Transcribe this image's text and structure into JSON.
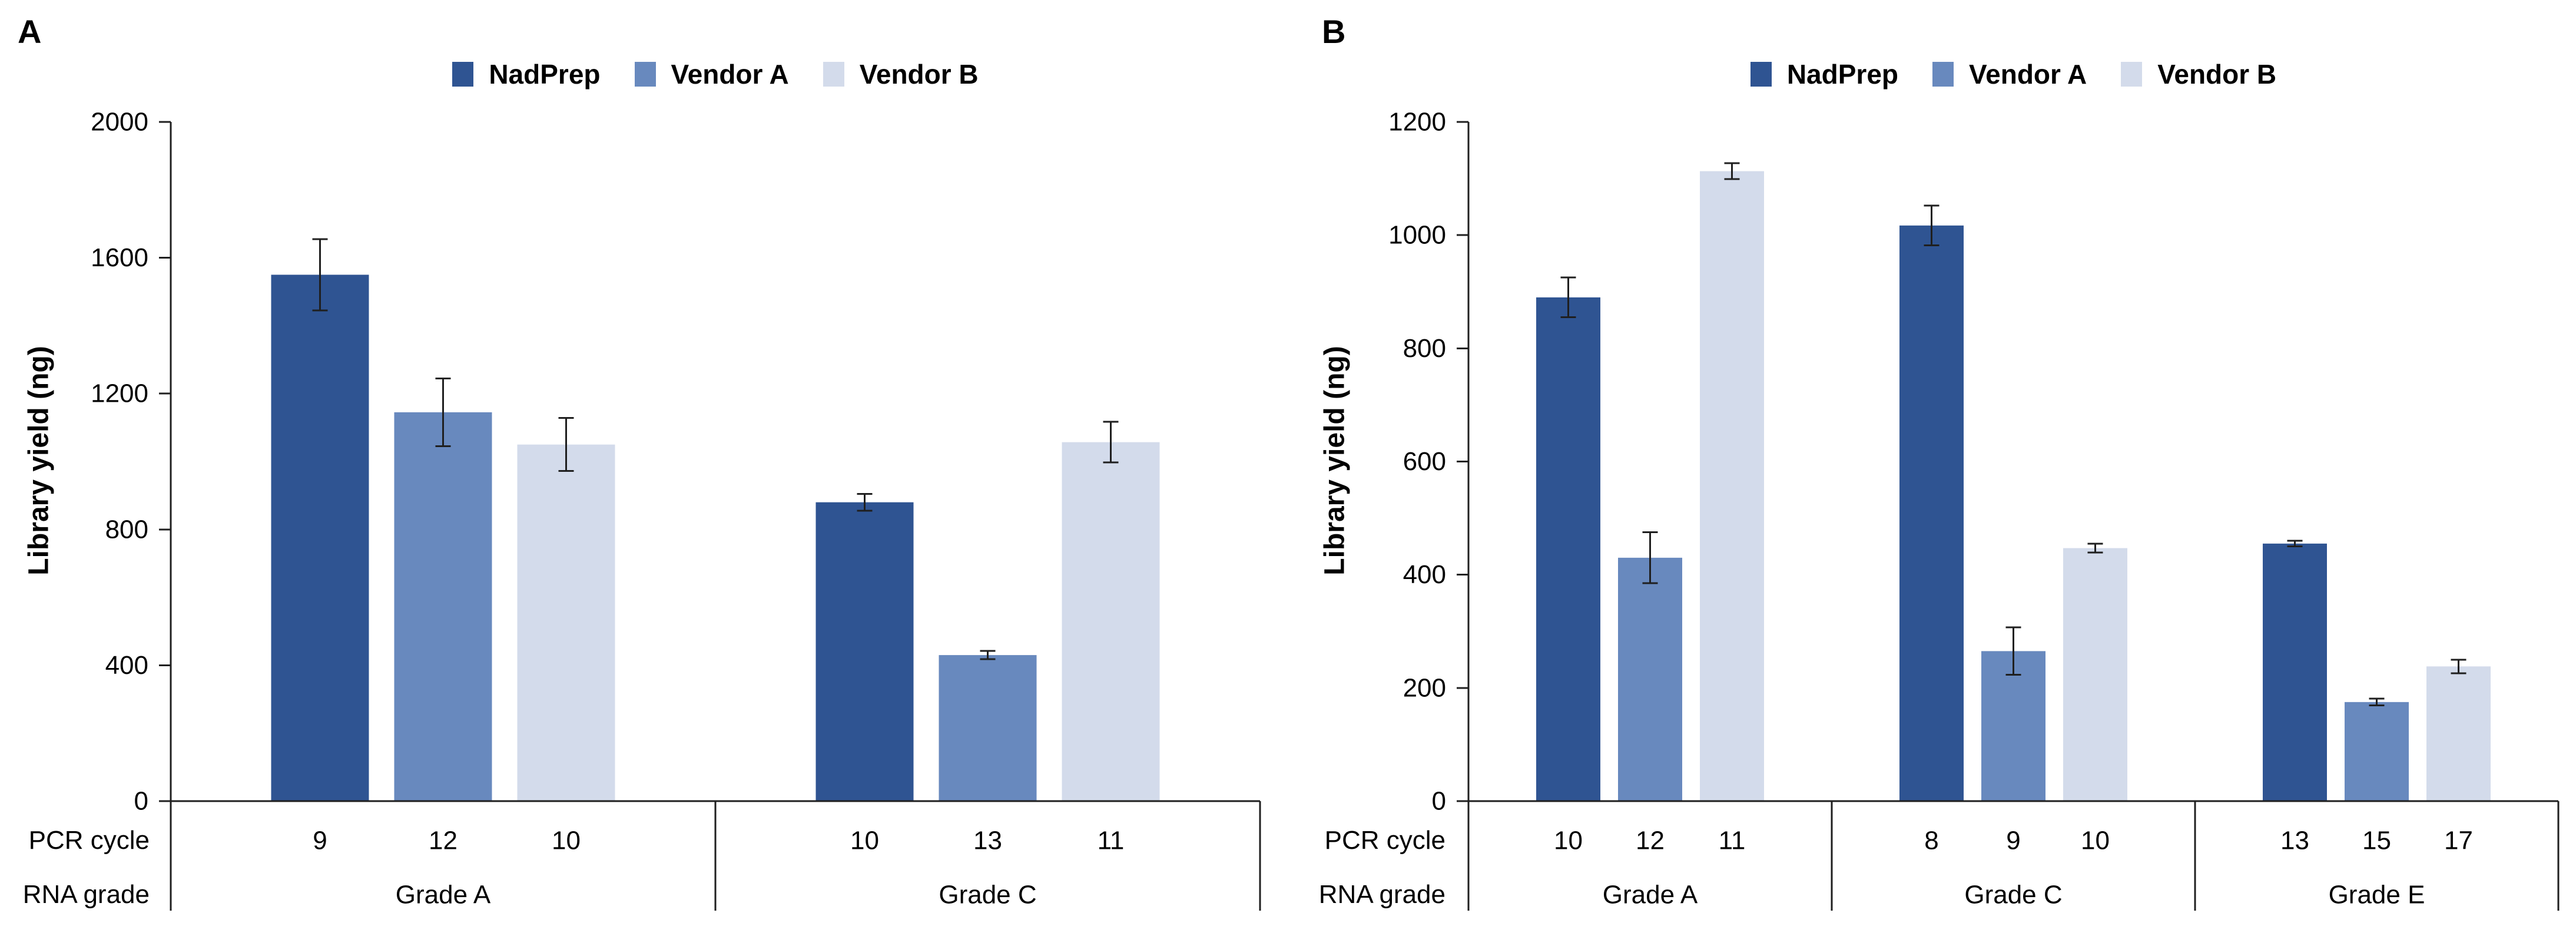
{
  "colors": {
    "series": [
      "#2F5492",
      "#6889BE",
      "#D3DBEB"
    ],
    "axis": "#1F1F1F",
    "text": "#000000"
  },
  "row_labels": {
    "pcr": "PCR cycle",
    "rna": "RNA grade"
  },
  "chart_data": [
    {
      "type": "bar",
      "panel_label": "A",
      "title": "",
      "ylabel": "Library yield (ng)",
      "xlabel": "",
      "ylim": [
        0,
        2000
      ],
      "yticks": [
        0,
        400,
        800,
        1200,
        1600,
        2000
      ],
      "grid": false,
      "legend_position": "top-center",
      "legend": [
        "NadPrep",
        "Vendor A",
        "Vendor B"
      ],
      "groups": [
        {
          "rna_grade": "Grade A",
          "pcr_cycles": [
            "9",
            "12",
            "10"
          ],
          "values": [
            1550,
            1145,
            1050
          ],
          "errors": [
            105,
            100,
            78
          ]
        },
        {
          "rna_grade": "Grade C",
          "pcr_cycles": [
            "10",
            "13",
            "11"
          ],
          "values": [
            880,
            430,
            1057
          ],
          "errors": [
            25,
            12,
            60
          ]
        }
      ]
    },
    {
      "type": "bar",
      "panel_label": "B",
      "title": "",
      "ylabel": "Library yield (ng)",
      "xlabel": "",
      "ylim": [
        0,
        1200
      ],
      "yticks": [
        0,
        200,
        400,
        600,
        800,
        1000,
        1200
      ],
      "grid": false,
      "legend_position": "top-center",
      "legend": [
        "NadPrep",
        "Vendor A",
        "Vendor B"
      ],
      "groups": [
        {
          "rna_grade": "Grade A",
          "pcr_cycles": [
            "10",
            "12",
            "11"
          ],
          "values": [
            890,
            430,
            1113
          ],
          "errors": [
            35,
            45,
            14
          ]
        },
        {
          "rna_grade": "Grade C",
          "pcr_cycles": [
            "8",
            "9",
            "10"
          ],
          "values": [
            1017,
            265,
            447
          ],
          "errors": [
            35,
            42,
            8
          ]
        },
        {
          "rna_grade": "Grade E",
          "pcr_cycles": [
            "13",
            "15",
            "17"
          ],
          "values": [
            455,
            175,
            238
          ],
          "errors": [
            5,
            6,
            12
          ]
        }
      ]
    }
  ]
}
